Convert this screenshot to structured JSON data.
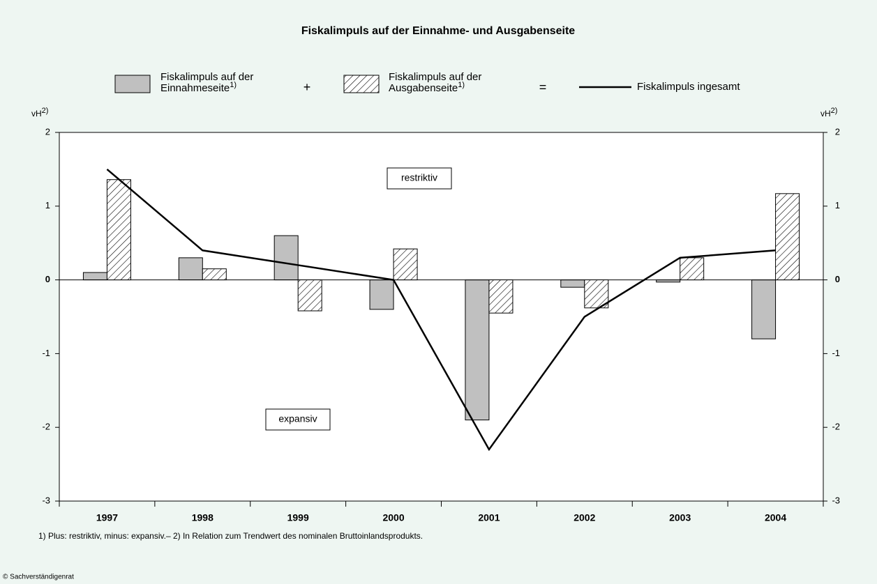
{
  "chart_data": {
    "type": "bar_line",
    "title": "Fiskalimpuls auf der Einnahme- und Ausgabenseite",
    "categories": [
      "1997",
      "1998",
      "1999",
      "2000",
      "2001",
      "2002",
      "2003",
      "2004"
    ],
    "series": [
      {
        "name": "Fiskalimpuls auf der Einnahmeseite",
        "note_ref": "1)",
        "kind": "bar",
        "color": "#c0c0c0",
        "values": [
          0.1,
          0.3,
          0.6,
          -0.4,
          -1.9,
          -0.1,
          -0.03,
          -0.8
        ]
      },
      {
        "name": "Fiskalimpuls auf der Ausgabenseite",
        "note_ref": "1)",
        "kind": "hatched-bar",
        "color": "#000000",
        "values": [
          1.36,
          0.15,
          -0.42,
          0.42,
          -0.45,
          -0.38,
          0.3,
          1.17
        ]
      },
      {
        "name": "Fiskalimpuls ingesamt",
        "kind": "line",
        "color": "#000000",
        "values": [
          1.5,
          0.4,
          0.2,
          0,
          -2.3,
          -0.5,
          0.3,
          0.4
        ]
      }
    ],
    "legend_operators": [
      "+",
      "="
    ],
    "y_label": "vH",
    "y_label_note": "2)",
    "ylim": [
      -3,
      2
    ],
    "yticks": [
      -3,
      -2,
      -1,
      0,
      1,
      2
    ],
    "y2lim": [
      -3,
      2
    ],
    "y2ticks": [
      -3,
      -2,
      -1,
      0,
      1,
      2
    ],
    "annotations": [
      "restriktiv",
      "expansiv"
    ],
    "footnote": "1) Plus: restriktiv, minus: expansiv.– 2) In Relation zum Trendwert des nominalen Bruttoinlandsprodukts.",
    "source": "© Sachverständigenrat"
  }
}
